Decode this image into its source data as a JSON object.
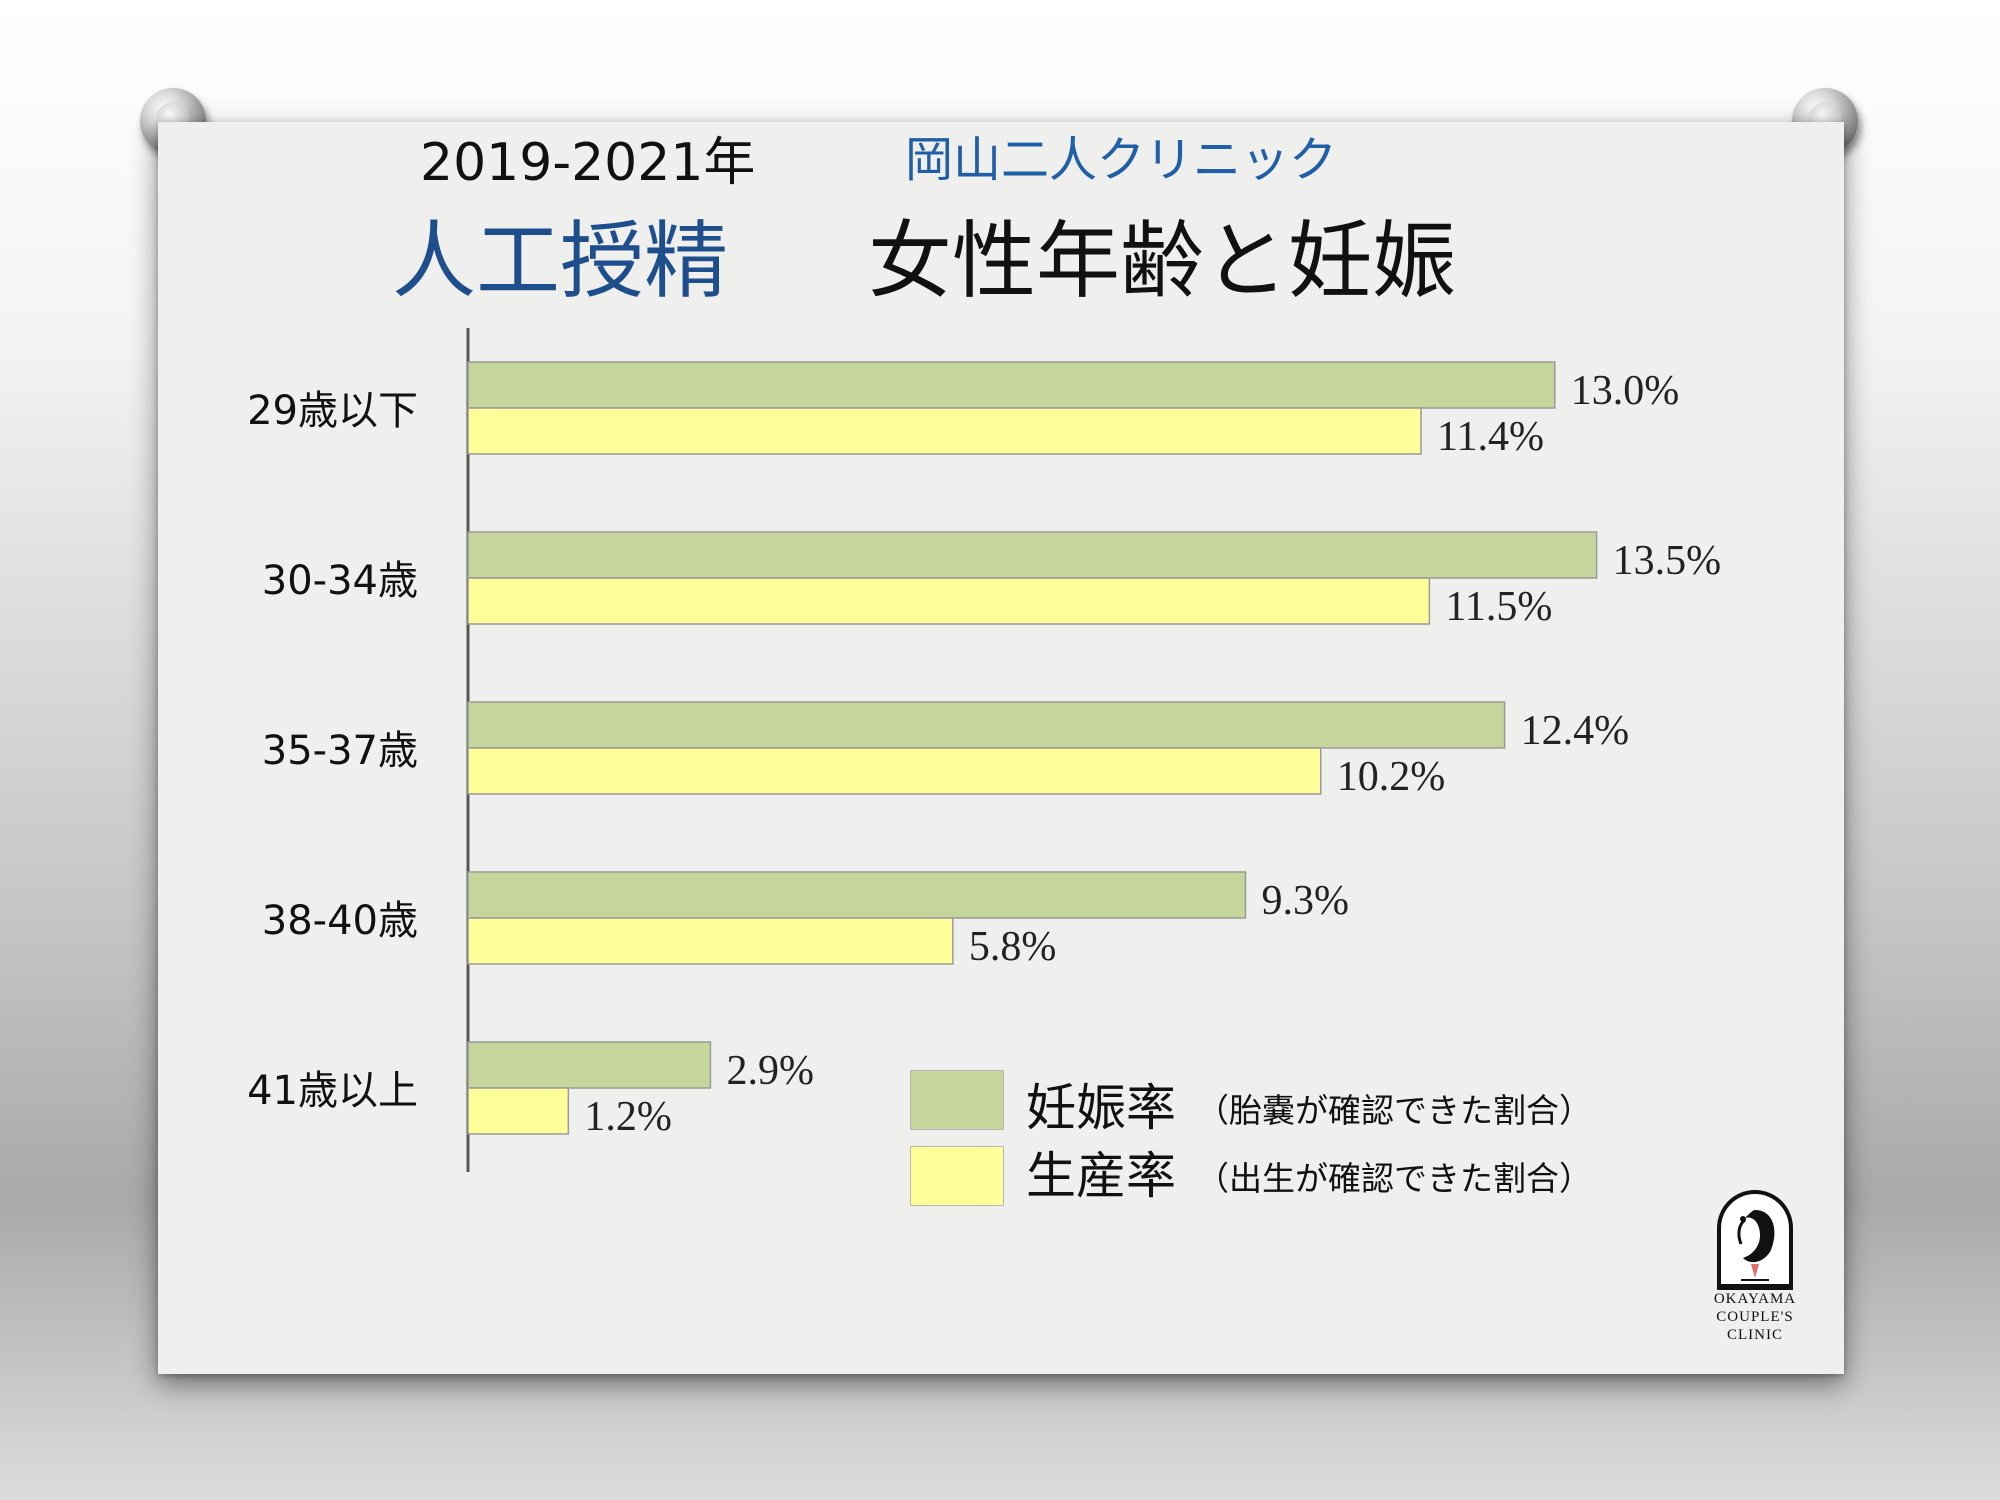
{
  "header": {
    "period": "2019-2021年",
    "clinic": "岡山二人クリニック",
    "title_main": "人工授精",
    "title_sub": "女性年齢と妊娠"
  },
  "legend": [
    {
      "label": "妊娠率",
      "note": "（胎嚢が確認できた割合）",
      "color": "#c6d59c"
    },
    {
      "label": "生産率",
      "note": "（出生が確認できた割合）",
      "color": "#ffff99"
    }
  ],
  "logo": {
    "lines": [
      "OKAYAMA",
      "COUPLE'S",
      "CLINIC"
    ]
  },
  "chart_data": {
    "type": "bar",
    "orientation": "horizontal",
    "categories": [
      "29歳以下",
      "30-34歳",
      "35-37歳",
      "38-40歳",
      "41歳以上"
    ],
    "series": [
      {
        "name": "妊娠率",
        "values": [
          13.0,
          13.5,
          12.4,
          9.3,
          2.9
        ],
        "labels": [
          "13.0%",
          "13.5%",
          "12.4%",
          "9.3%",
          "2.9%"
        ],
        "color": "#c6d59c"
      },
      {
        "name": "生産率",
        "values": [
          11.4,
          11.5,
          10.2,
          5.8,
          1.2
        ],
        "labels": [
          "11.4%",
          "11.5%",
          "10.2%",
          "5.8%",
          "1.2%"
        ],
        "color": "#ffff99"
      }
    ],
    "xlim": [
      0,
      15
    ],
    "grid": false,
    "legend_position": "bottom-right"
  }
}
